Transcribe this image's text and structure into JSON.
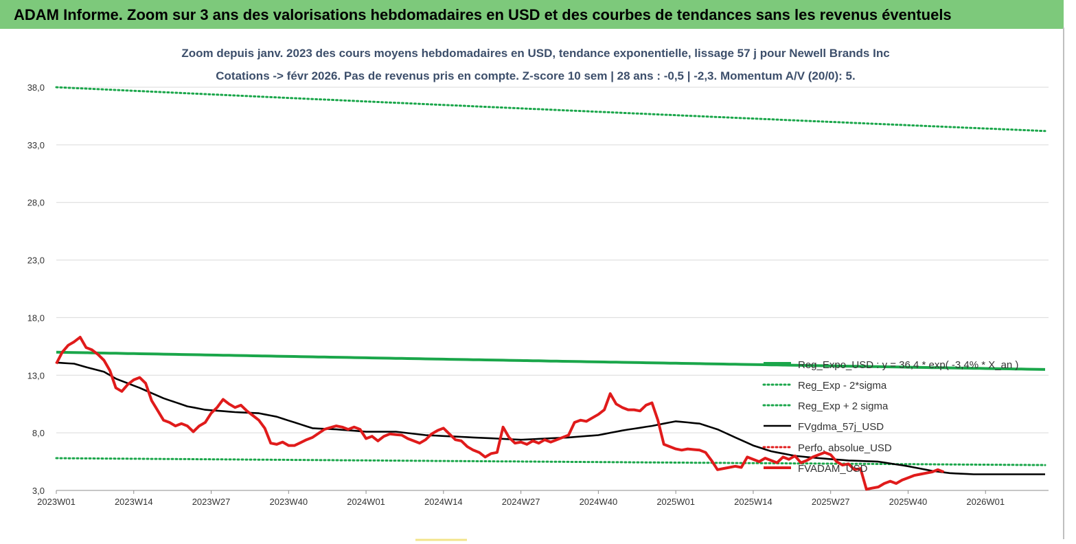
{
  "banner": {
    "title": "ADAM Informe. Zoom sur 3 ans des valorisations hebdomadaires en USD et des courbes de tendances sans les revenus éventuels",
    "bg_color": "#7dc97b"
  },
  "chart_data": {
    "type": "line",
    "title_line1": "Zoom depuis janv. 2023 des cours moyens hebdomadaires en USD, tendance exponentielle, lissage 57 j pour Newell Brands Inc",
    "title_line2": "Cotations -> févr 2026.  Pas de revenus pris en compte. Z-score 10 sem  | 28 ans : -0,5 | -2,3. Momentum A/V (20/0): 5.",
    "ylim": [
      3.0,
      38.0
    ],
    "yticks": [
      "3,0",
      "8,0",
      "13,0",
      "18,0",
      "23,0",
      "28,0",
      "33,0",
      "38,0"
    ],
    "ytick_values": [
      3,
      8,
      13,
      18,
      23,
      28,
      33,
      38
    ],
    "xticks": [
      "2023W01",
      "2023W14",
      "2023W27",
      "2023W40",
      "2024W01",
      "2024W14",
      "2024W27",
      "2024W40",
      "2025W01",
      "2025W14",
      "2025W27",
      "2025W40",
      "2026W01"
    ],
    "xtick_index": [
      0,
      13,
      26,
      39,
      52,
      65,
      78,
      91,
      104,
      117,
      130,
      143,
      156
    ],
    "n_points": 167,
    "grid": true,
    "legend_position": "right",
    "series": [
      {
        "name": "Reg_Expo_USD : y = 36,4 * exp( -3,4% *  X_an )",
        "color": "#1aa64a",
        "style": "solid-thick",
        "start": 15.0,
        "end": 13.5
      },
      {
        "name": "Reg_Exp - 2*sigma",
        "color": "#1aa64a",
        "style": "dotted",
        "start": 5.8,
        "end": 5.2
      },
      {
        "name": "Reg_Exp + 2 sigma",
        "color": "#1aa64a",
        "style": "dotted",
        "start": 38.0,
        "end": 34.2
      },
      {
        "name": "FVgdma_57j_USD",
        "color": "#000000",
        "style": "solid",
        "anchors": [
          [
            0,
            14.1
          ],
          [
            3,
            14.0
          ],
          [
            5,
            13.7
          ],
          [
            8,
            13.3
          ],
          [
            10,
            12.7
          ],
          [
            14,
            11.9
          ],
          [
            18,
            11.0
          ],
          [
            22,
            10.3
          ],
          [
            25,
            10.0
          ],
          [
            30,
            9.8
          ],
          [
            34,
            9.7
          ],
          [
            37,
            9.4
          ],
          [
            40,
            8.9
          ],
          [
            43,
            8.4
          ],
          [
            47,
            8.3
          ],
          [
            52,
            8.1
          ],
          [
            57,
            8.1
          ],
          [
            62,
            7.8
          ],
          [
            66,
            7.7
          ],
          [
            70,
            7.6
          ],
          [
            74,
            7.5
          ],
          [
            78,
            7.4
          ],
          [
            82,
            7.5
          ],
          [
            86,
            7.6
          ],
          [
            91,
            7.8
          ],
          [
            95,
            8.2
          ],
          [
            100,
            8.6
          ],
          [
            104,
            9.0
          ],
          [
            108,
            8.8
          ],
          [
            111,
            8.3
          ],
          [
            114,
            7.6
          ],
          [
            117,
            6.9
          ],
          [
            120,
            6.4
          ],
          [
            124,
            6.0
          ],
          [
            128,
            5.8
          ],
          [
            133,
            5.6
          ],
          [
            138,
            5.5
          ],
          [
            143,
            5.1
          ],
          [
            147,
            4.7
          ],
          [
            150,
            4.5
          ],
          [
            154,
            4.4
          ],
          [
            160,
            4.4
          ],
          [
            166,
            4.4
          ]
        ]
      },
      {
        "name": "Perfo. absolue_USD",
        "color": "#e01b1b",
        "style": "dotted",
        "values": []
      },
      {
        "name": "FVADAM_USD",
        "color": "#e01b1b",
        "style": "solid-thick",
        "anchors": [
          [
            0,
            14.0
          ],
          [
            1,
            15.0
          ],
          [
            2,
            15.6
          ],
          [
            3,
            15.9
          ],
          [
            4,
            16.3
          ],
          [
            5,
            15.4
          ],
          [
            6,
            15.2
          ],
          [
            7,
            14.8
          ],
          [
            8,
            14.3
          ],
          [
            9,
            13.4
          ],
          [
            10,
            11.9
          ],
          [
            11,
            11.6
          ],
          [
            12,
            12.2
          ],
          [
            13,
            12.6
          ],
          [
            14,
            12.8
          ],
          [
            15,
            12.3
          ],
          [
            16,
            10.8
          ],
          [
            18,
            9.1
          ],
          [
            19,
            8.9
          ],
          [
            20,
            8.6
          ],
          [
            21,
            8.8
          ],
          [
            22,
            8.6
          ],
          [
            23,
            8.1
          ],
          [
            24,
            8.6
          ],
          [
            25,
            8.9
          ],
          [
            26,
            9.7
          ],
          [
            27,
            10.2
          ],
          [
            28,
            10.9
          ],
          [
            29,
            10.5
          ],
          [
            30,
            10.2
          ],
          [
            31,
            10.4
          ],
          [
            32,
            9.9
          ],
          [
            33,
            9.5
          ],
          [
            34,
            9.1
          ],
          [
            35,
            8.4
          ],
          [
            36,
            7.1
          ],
          [
            37,
            7.0
          ],
          [
            38,
            7.2
          ],
          [
            39,
            6.9
          ],
          [
            40,
            6.9
          ],
          [
            42,
            7.4
          ],
          [
            43,
            7.6
          ],
          [
            45,
            8.3
          ],
          [
            47,
            8.6
          ],
          [
            48,
            8.5
          ],
          [
            49,
            8.3
          ],
          [
            50,
            8.5
          ],
          [
            51,
            8.3
          ],
          [
            52,
            7.5
          ],
          [
            53,
            7.7
          ],
          [
            54,
            7.3
          ],
          [
            55,
            7.7
          ],
          [
            56,
            7.9
          ],
          [
            58,
            7.8
          ],
          [
            59,
            7.5
          ],
          [
            60,
            7.3
          ],
          [
            61,
            7.1
          ],
          [
            62,
            7.4
          ],
          [
            63,
            7.9
          ],
          [
            64,
            8.2
          ],
          [
            65,
            8.4
          ],
          [
            66,
            7.9
          ],
          [
            67,
            7.4
          ],
          [
            68,
            7.3
          ],
          [
            69,
            6.8
          ],
          [
            70,
            6.5
          ],
          [
            71,
            6.3
          ],
          [
            72,
            5.9
          ],
          [
            73,
            6.2
          ],
          [
            74,
            6.3
          ],
          [
            75,
            8.5
          ],
          [
            76,
            7.6
          ],
          [
            77,
            7.1
          ],
          [
            78,
            7.2
          ],
          [
            79,
            7.0
          ],
          [
            80,
            7.3
          ],
          [
            81,
            7.1
          ],
          [
            82,
            7.4
          ],
          [
            83,
            7.2
          ],
          [
            84,
            7.4
          ],
          [
            86,
            7.8
          ],
          [
            87,
            8.9
          ],
          [
            88,
            9.1
          ],
          [
            89,
            9.0
          ],
          [
            90,
            9.3
          ],
          [
            91,
            9.6
          ],
          [
            92,
            10.0
          ],
          [
            93,
            11.4
          ],
          [
            94,
            10.5
          ],
          [
            95,
            10.2
          ],
          [
            96,
            10.0
          ],
          [
            97,
            10.0
          ],
          [
            98,
            9.9
          ],
          [
            99,
            10.4
          ],
          [
            100,
            10.6
          ],
          [
            101,
            9.1
          ],
          [
            102,
            7.0
          ],
          [
            103,
            6.8
          ],
          [
            104,
            6.6
          ],
          [
            105,
            6.5
          ],
          [
            106,
            6.6
          ],
          [
            108,
            6.5
          ],
          [
            109,
            6.3
          ],
          [
            110,
            5.6
          ],
          [
            111,
            4.8
          ],
          [
            112,
            4.9
          ],
          [
            113,
            5.0
          ],
          [
            114,
            5.1
          ],
          [
            115,
            5.0
          ],
          [
            116,
            5.9
          ],
          [
            117,
            5.7
          ],
          [
            118,
            5.5
          ],
          [
            119,
            5.8
          ],
          [
            120,
            5.6
          ],
          [
            121,
            5.4
          ],
          [
            122,
            5.9
          ],
          [
            123,
            5.7
          ],
          [
            124,
            6.0
          ],
          [
            125,
            5.4
          ],
          [
            126,
            5.6
          ],
          [
            127,
            5.9
          ],
          [
            128,
            6.1
          ],
          [
            129,
            6.3
          ],
          [
            130,
            6.1
          ],
          [
            131,
            5.5
          ],
          [
            132,
            5.2
          ],
          [
            133,
            5.3
          ],
          [
            134,
            4.8
          ],
          [
            135,
            4.9
          ],
          [
            136,
            3.1
          ],
          [
            137,
            3.2
          ],
          [
            138,
            3.3
          ],
          [
            139,
            3.6
          ],
          [
            140,
            3.8
          ],
          [
            141,
            3.6
          ],
          [
            142,
            3.9
          ],
          [
            143,
            4.1
          ],
          [
            144,
            4.3
          ],
          [
            145,
            4.4
          ],
          [
            146,
            4.5
          ],
          [
            147,
            4.6
          ],
          [
            148,
            4.8
          ],
          [
            149,
            4.6
          ]
        ],
        "x_offset": 0
      }
    ]
  }
}
